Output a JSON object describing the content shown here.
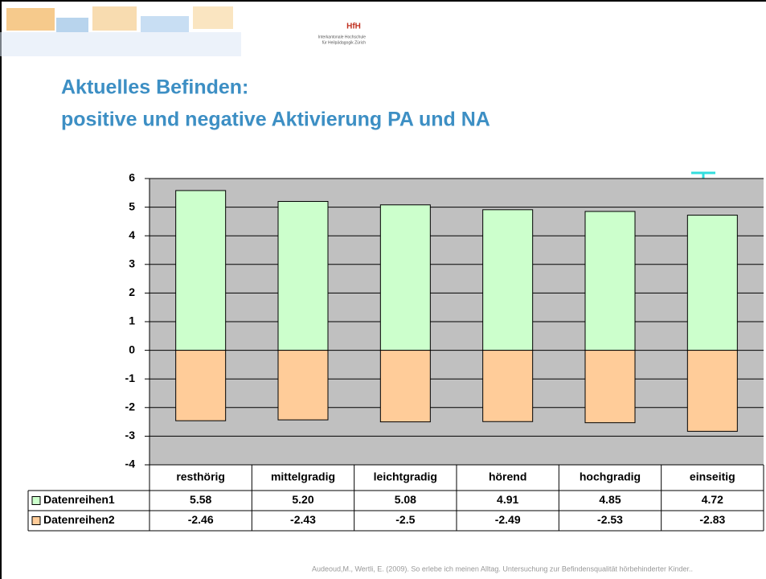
{
  "header": {
    "logo": "HfH",
    "institution_lines": [
      "Interkantonale Hochschule",
      "für Heilpädagogik Zürich"
    ]
  },
  "slide_title_lines": [
    "Aktuelles Befinden:",
    "positive und negative Aktivierung PA und NA"
  ],
  "chart_data": {
    "type": "bar",
    "categories": [
      "resthörig",
      "mittelgradig",
      "leichtgradig",
      "hörend",
      "hochgradig",
      "einseitig"
    ],
    "series": [
      {
        "name": "Datenreihen1",
        "color": "#ccffcc",
        "values": [
          5.58,
          5.2,
          5.08,
          4.91,
          4.85,
          4.72
        ],
        "value_labels": [
          "5.58",
          "5.20",
          "5.08",
          "4.91",
          "4.85",
          "4.72"
        ]
      },
      {
        "name": "Datenreihen2",
        "color": "#ffcc99",
        "values": [
          -2.46,
          -2.43,
          -2.5,
          -2.49,
          -2.53,
          -2.83
        ]
      }
    ],
    "ylim": [
      -4,
      6
    ],
    "yticks": [
      -4,
      -3,
      -2,
      -1,
      0,
      1,
      2,
      3,
      4,
      5,
      6
    ],
    "grid": true,
    "plot_background": "#c0c0c0"
  },
  "footer": "Audeoud,M., Wertli, E. (2009). So erlebe ich meinen Alltag. Untersuchung zur Befindensqualität hörbehinderter Kinder.."
}
